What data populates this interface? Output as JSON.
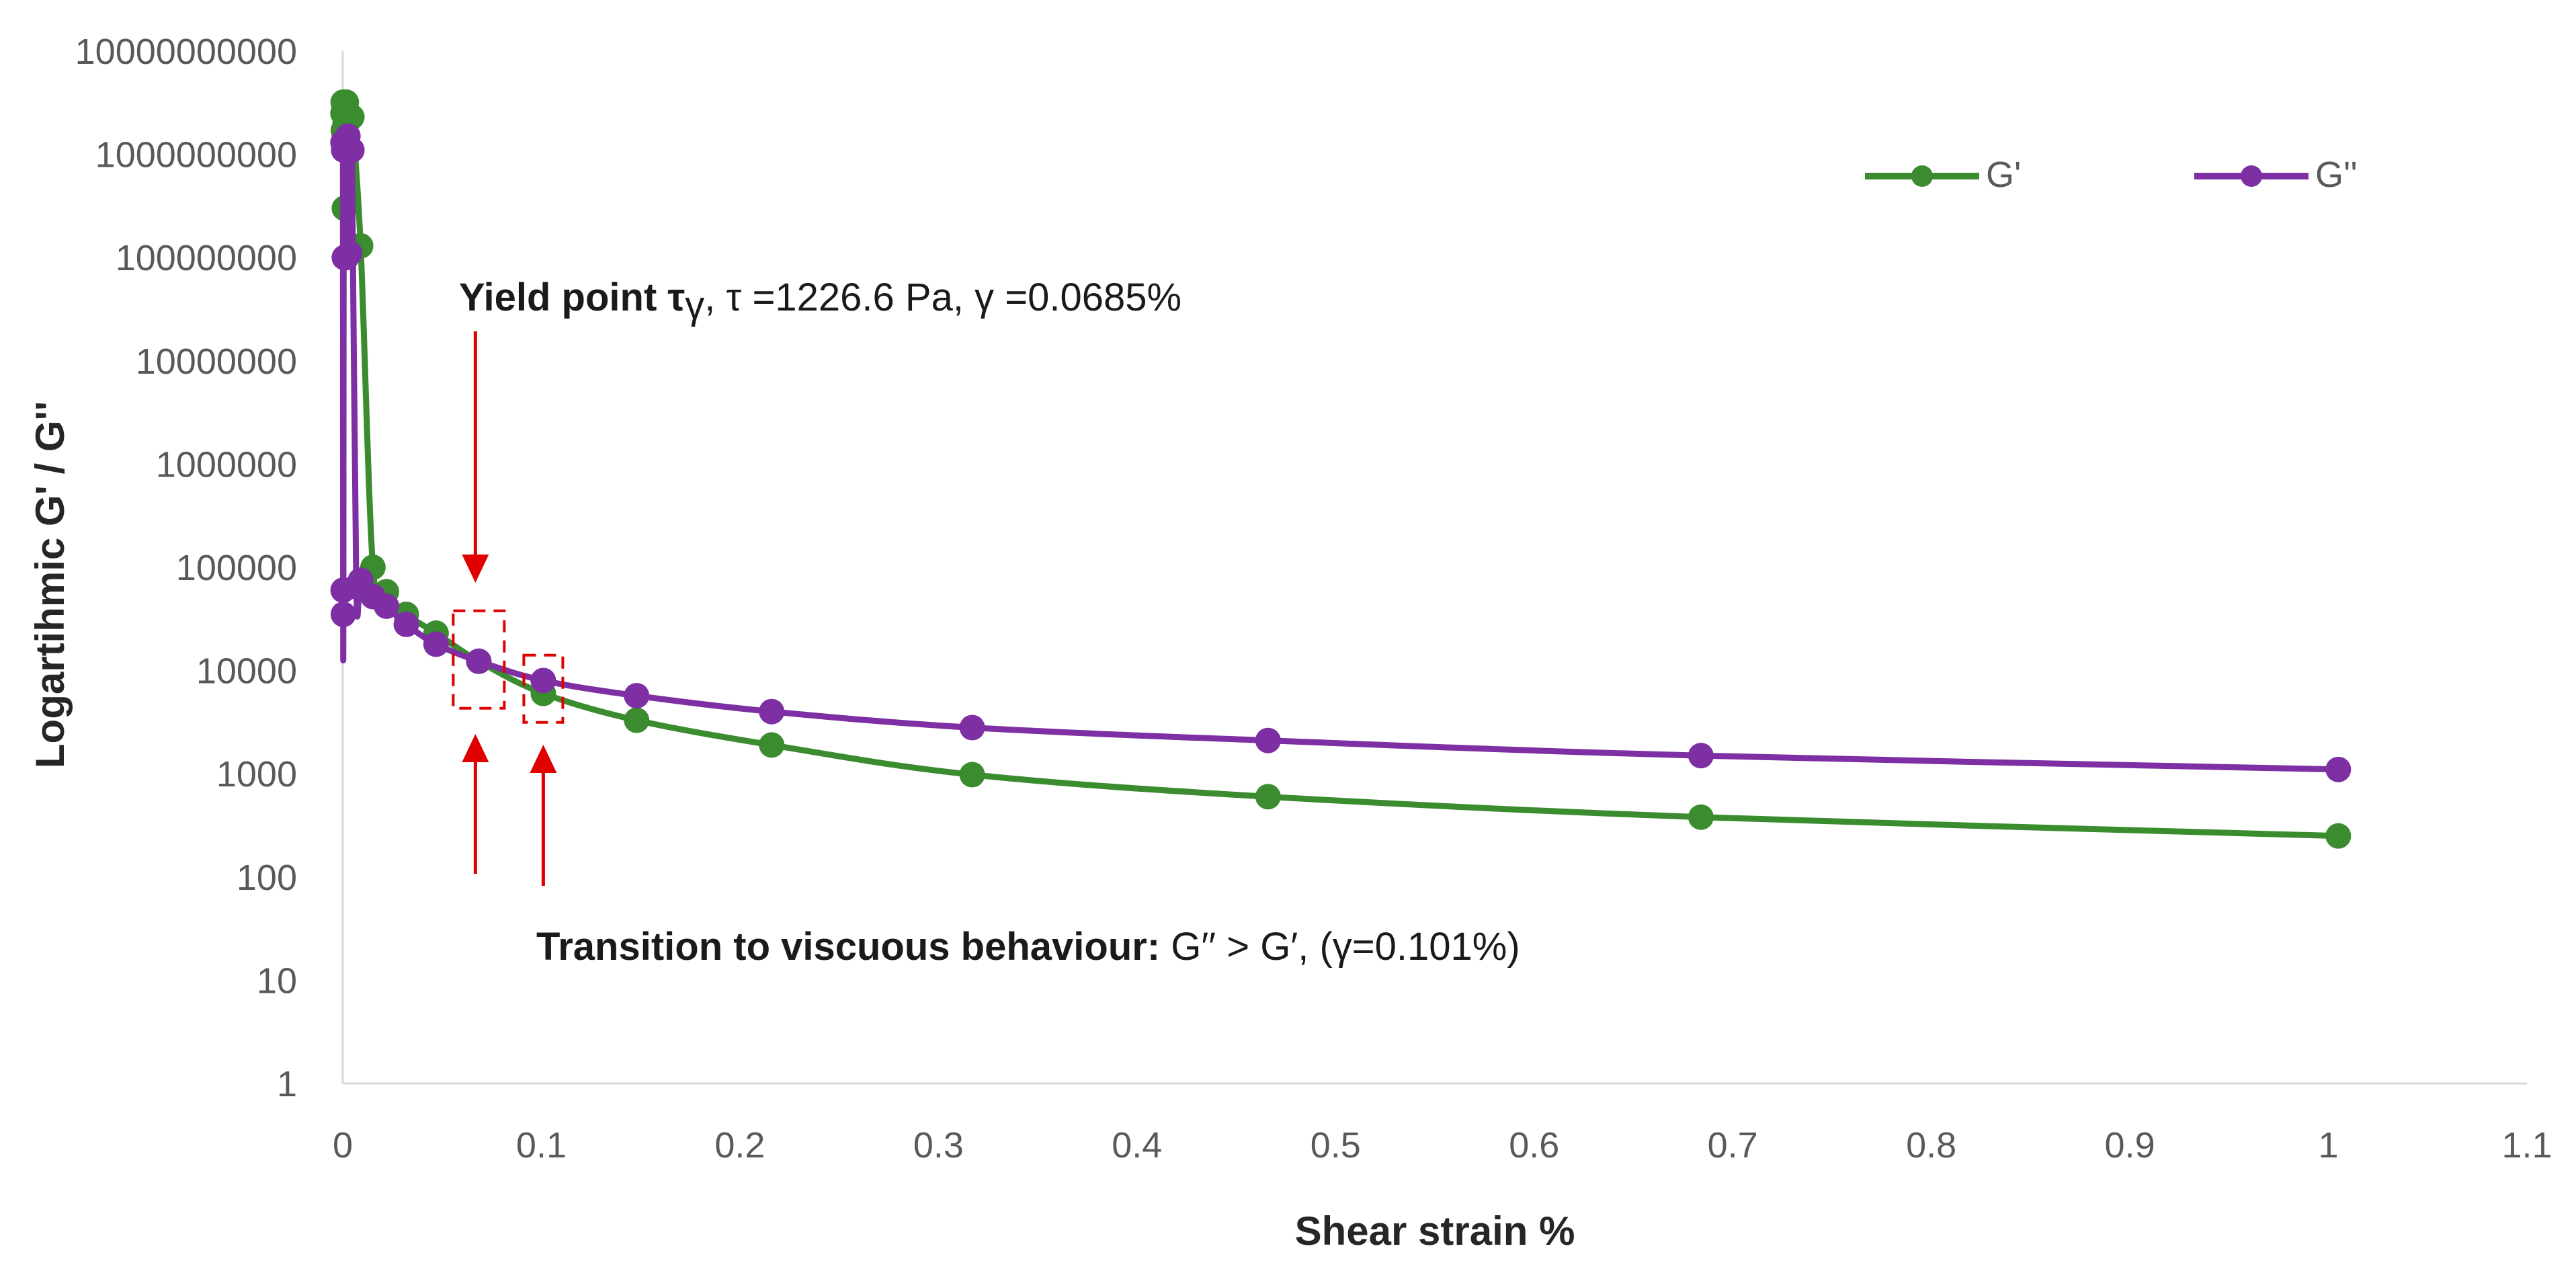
{
  "chart_data": {
    "type": "line",
    "title": "",
    "xlabel": "Shear strain %",
    "ylabel": "Logartihmic G' / G''",
    "y_scale": "log",
    "xlim": [
      0,
      1.1
    ],
    "ylim": [
      1,
      10000000000
    ],
    "x_ticks": [
      "0",
      "0.1",
      "0.2",
      "0.3",
      "0.4",
      "0.5",
      "0.6",
      "0.7",
      "0.8",
      "0.9",
      "1",
      "1.1"
    ],
    "y_ticks": [
      "1",
      "10",
      "100",
      "1000",
      "10000",
      "100000",
      "1000000",
      "10000000",
      "100000000",
      "1000000000",
      "10000000000"
    ],
    "legend_position": "top-right",
    "series": [
      {
        "name": "G'",
        "color": "#3a8c2f",
        "points": [
          [
            0.0001,
            2500000000
          ],
          [
            0.0002,
            3200000000
          ],
          [
            0.0003,
            1700000000
          ],
          [
            0.0005,
            1100000000
          ],
          [
            0.0008,
            300000000
          ],
          [
            0.0012,
            2000000000
          ],
          [
            0.0018,
            3200000000
          ],
          [
            0.0026,
            2500000000
          ],
          [
            0.0035,
            2200000000
          ],
          [
            0.0046,
            2300000000
          ],
          [
            0.009,
            130000000
          ],
          [
            0.0152,
            100000
          ],
          [
            0.022,
            58000
          ],
          [
            0.032,
            35000
          ],
          [
            0.047,
            23000
          ],
          [
            0.0685,
            12300
          ],
          [
            0.101,
            6000
          ],
          [
            0.148,
            3300
          ],
          [
            0.216,
            1900
          ],
          [
            0.317,
            980
          ],
          [
            0.466,
            600
          ],
          [
            0.684,
            380
          ],
          [
            1.005,
            250
          ]
        ]
      },
      {
        "name": "G''",
        "color": "#7d2fa3",
        "points": [
          [
            0.0001,
            1300000000
          ],
          [
            0.0002,
            60000
          ],
          [
            0.0003,
            35000
          ],
          [
            0.0005,
            1100000000
          ],
          [
            0.0008,
            100000000
          ],
          [
            0.0012,
            1200000000
          ],
          [
            0.0018,
            100000000
          ],
          [
            0.0026,
            1500000000
          ],
          [
            0.0035,
            110000000
          ],
          [
            0.0046,
            1100000000
          ],
          [
            0.0068,
            65000
          ],
          [
            0.009,
            75000
          ],
          [
            0.0152,
            52000
          ],
          [
            0.022,
            42000
          ],
          [
            0.032,
            28000
          ],
          [
            0.047,
            18000
          ],
          [
            0.0685,
            12300
          ],
          [
            0.101,
            8000
          ],
          [
            0.148,
            5700
          ],
          [
            0.216,
            4000
          ],
          [
            0.317,
            2800
          ],
          [
            0.466,
            2100
          ],
          [
            0.684,
            1500
          ],
          [
            1.005,
            1100
          ]
        ]
      }
    ],
    "annotations": {
      "yield_bold": "Yield point τ",
      "yield_sub": "γ",
      "yield_rest": ", τ =1226.6 Pa, γ =0.0685%",
      "transition_bold": "Transition to viscuous behaviour:",
      "transition_rest": " G′′ > G′,  (γ=0.101%)",
      "yield_strain": 0.0685,
      "yield_modulus": 12300,
      "crossover_strain": 0.101,
      "crossover_modulus": 7500
    },
    "annotation_color": "#e00000"
  }
}
